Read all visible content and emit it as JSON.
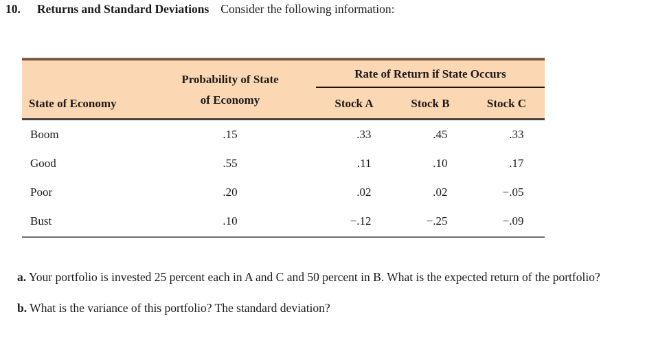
{
  "problem": {
    "number": "10.",
    "title": "Returns and Standard Deviations",
    "intro": "Consider the following information:"
  },
  "table": {
    "header": {
      "state_col": "State of Economy",
      "probability_col_line1": "Probability of State",
      "probability_col_line2": "of Economy",
      "rate_group_title": "Rate of Return if State Occurs",
      "stocks": [
        "Stock A",
        "Stock B",
        "Stock C"
      ]
    },
    "rows": [
      {
        "state": "Boom",
        "probability": ".15",
        "stock_a": ".33",
        "stock_b": ".45",
        "stock_c": ".33"
      },
      {
        "state": "Good",
        "probability": ".55",
        "stock_a": ".11",
        "stock_b": ".10",
        "stock_c": ".17"
      },
      {
        "state": "Poor",
        "probability": ".20",
        "stock_a": ".02",
        "stock_b": ".02",
        "stock_c": "−.05"
      },
      {
        "state": "Bust",
        "probability": ".10",
        "stock_a": "−.12",
        "stock_b": "−.25",
        "stock_c": "−.09"
      }
    ]
  },
  "questions": [
    {
      "label": "a.",
      "text": "Your portfolio is invested 25 percent each in A and C and 50 percent in B. What is the expected return of the portfolio?"
    },
    {
      "label": "b.",
      "text": "What is the variance of this portfolio? The standard deviation?"
    }
  ],
  "colors": {
    "table_header_bg": "#fbd7b4",
    "top_rule_accent": "#8a4631",
    "header_separator": "#49423c",
    "rate_underline": "#20160f",
    "bottom_rule": "#6f6f6f"
  }
}
